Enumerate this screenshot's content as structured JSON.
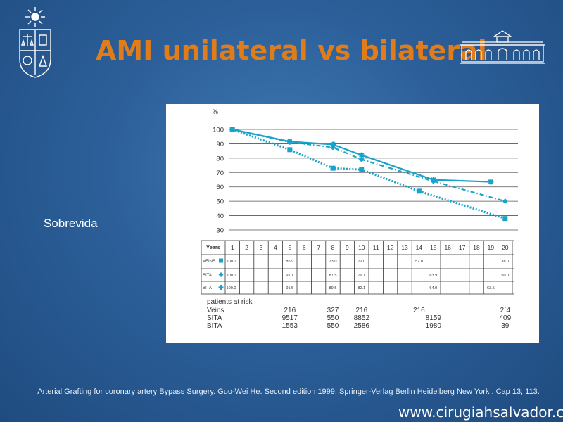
{
  "slide": {
    "title": "AMI unilateral vs bilateral",
    "side_label": "Sobrevida",
    "citation": "Arterial Grafting for coronary artery Bypass Surgery. Guo-Wei He. Second edition 1999. Springer-Verlag Berlin Heidelberg New York . Cap 13; 113.",
    "footer_url": "www.cirugiahsalvador.cl"
  },
  "colors": {
    "accent_title": "#e07c1a",
    "series": "#1aa3c9"
  },
  "chart_data": {
    "type": "line",
    "ylabel": "%",
    "ylim": [
      30,
      100
    ],
    "yticks": [
      100,
      90,
      80,
      70,
      60,
      50,
      40,
      30
    ],
    "xlim": [
      1,
      20
    ],
    "grid": true,
    "series": [
      {
        "name": "VEINS",
        "marker": "square",
        "style": "dotted",
        "x": [
          1,
          5,
          8,
          10,
          14,
          20
        ],
        "values": [
          100,
          85.9,
          73.0,
          72.0,
          57.0,
          38.0
        ]
      },
      {
        "name": "SITA",
        "marker": "diamond",
        "style": "dashdot",
        "x": [
          1,
          5,
          8,
          10,
          15,
          20
        ],
        "values": [
          100,
          91.1,
          87.5,
          79.1,
          63.9,
          50.0
        ]
      },
      {
        "name": "BITA",
        "marker": "star",
        "style": "solid",
        "x": [
          1,
          5,
          8,
          10,
          15,
          19
        ],
        "values": [
          100,
          91.5,
          89.5,
          82.1,
          64.9,
          63.5
        ]
      }
    ],
    "table": {
      "header_label": "Years",
      "years": [
        "1",
        "2",
        "3",
        "4",
        "5",
        "6",
        "7",
        "8",
        "9",
        "10",
        "11",
        "12",
        "13",
        "14",
        "15",
        "16",
        "17",
        "18",
        "19",
        "20"
      ],
      "rows": [
        {
          "label": "VEINS",
          "cells": [
            "100.0",
            "",
            "",
            "",
            "85.9",
            "",
            "",
            "73.0",
            "",
            "72.0",
            "",
            "",
            "",
            "57.0",
            "",
            "",
            "",
            "",
            "",
            "38.0"
          ]
        },
        {
          "label": "SITA",
          "cells": [
            "100.0",
            "",
            "",
            "",
            "91.1",
            "",
            "",
            "87.5",
            "",
            "79.1",
            "",
            "",
            "",
            "",
            "63.9",
            "",
            "",
            "",
            "",
            "50.0"
          ]
        },
        {
          "label": "BITA",
          "cells": [
            "100.0",
            "",
            "",
            "",
            "91.5",
            "",
            "",
            "89.5",
            "",
            "82.1",
            "",
            "",
            "",
            "",
            "64.9",
            "",
            "",
            "",
            "63.5",
            ""
          ]
        }
      ]
    },
    "risk": {
      "title": "patients at risk",
      "rows": [
        {
          "label": "Veins",
          "entries": [
            {
              "year": 5,
              "value": "216"
            },
            {
              "year": 8,
              "value": "327"
            },
            {
              "year": 10,
              "value": "216"
            },
            {
              "year": 14,
              "value": "216"
            },
            {
              "year": 20,
              "value": "2`4"
            }
          ]
        },
        {
          "label": "SITA",
          "entries": [
            {
              "year": 5,
              "value": "9517"
            },
            {
              "year": 8,
              "value": "550"
            },
            {
              "year": 10,
              "value": "8852"
            },
            {
              "year": 15,
              "value": "8159"
            },
            {
              "year": 20,
              "value": "409"
            }
          ]
        },
        {
          "label": "BITA",
          "entries": [
            {
              "year": 5,
              "value": "1553"
            },
            {
              "year": 8,
              "value": "550"
            },
            {
              "year": 10,
              "value": "2586"
            },
            {
              "year": 15,
              "value": "1980"
            },
            {
              "year": 20,
              "value": "39"
            }
          ]
        }
      ]
    }
  }
}
